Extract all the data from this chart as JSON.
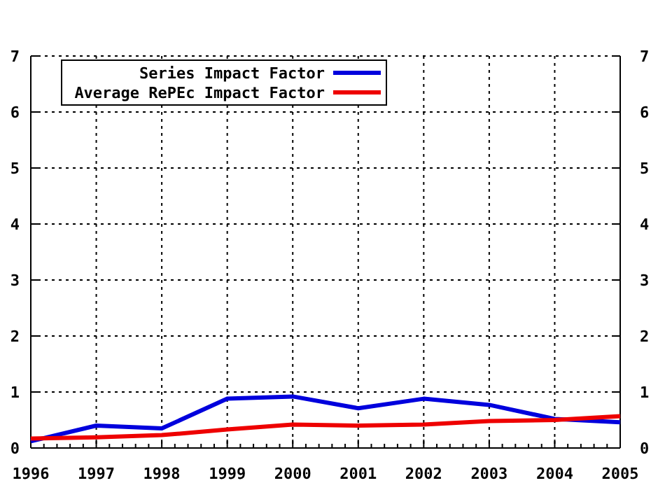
{
  "chart_data": {
    "type": "line",
    "x": [
      1996,
      1997,
      1998,
      1999,
      2000,
      2001,
      2002,
      2003,
      2004,
      2005
    ],
    "xlim": [
      1996,
      2005
    ],
    "xticks": [
      1996,
      1997,
      1998,
      1999,
      2000,
      2001,
      2002,
      2003,
      2004,
      2005
    ],
    "ylim": [
      0,
      7
    ],
    "yticks": [
      0,
      1,
      2,
      3,
      4,
      5,
      6,
      7
    ],
    "y2lim": [
      0,
      7
    ],
    "y2ticks": [
      0,
      1,
      2,
      3,
      4,
      5,
      6,
      7
    ],
    "grid": true,
    "legend": "top left",
    "line_style": "solid",
    "series": [
      {
        "name": "Series Impact Factor",
        "color": "#0000dd",
        "values": [
          0.12,
          0.4,
          0.35,
          0.88,
          0.92,
          0.71,
          0.88,
          0.77,
          0.52,
          0.46
        ]
      },
      {
        "name": "Average RePEc Impact Factor",
        "color": "#ee0000",
        "values": [
          0.17,
          0.19,
          0.23,
          0.33,
          0.42,
          0.4,
          0.42,
          0.48,
          0.5,
          0.57
        ]
      }
    ]
  }
}
